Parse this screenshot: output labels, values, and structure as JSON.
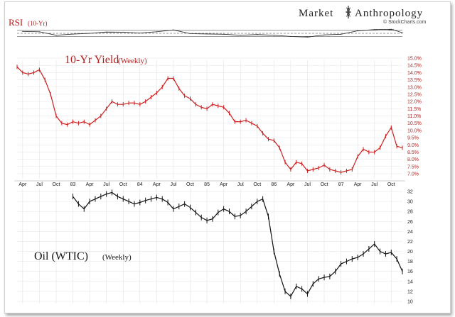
{
  "brand": {
    "name_left": "Market",
    "name_right": "Anthropology",
    "watermark": "© StockCharts.com"
  },
  "colors": {
    "yield_line": "#cc1f1f",
    "oil_line": "#111111",
    "rsi_line": "#333333",
    "rsi_fill": "#555555",
    "label_red": "#b81c1c",
    "text": "#222222",
    "grid": "#e3e3e3"
  },
  "chart_data": [
    {
      "type": "line",
      "panel": "rsi",
      "title": "RSI",
      "subtitle": "(10-Yr)",
      "x_unit": "date",
      "ylim": [
        0,
        100
      ],
      "levels": [
        70,
        50,
        30
      ],
      "x": [
        "1982-04",
        "1982-07",
        "1982-10",
        "1983-01",
        "1983-04",
        "1983-07",
        "1983-10",
        "1984-01",
        "1984-04",
        "1984-07",
        "1984-10",
        "1985-01",
        "1985-04",
        "1985-07",
        "1985-10",
        "1986-01",
        "1986-04",
        "1986-07",
        "1986-10",
        "1987-01",
        "1987-04",
        "1987-07",
        "1987-10",
        "1987-12"
      ],
      "values": [
        62,
        60,
        38,
        45,
        50,
        58,
        57,
        52,
        60,
        72,
        48,
        46,
        44,
        38,
        42,
        38,
        30,
        26,
        40,
        44,
        66,
        74,
        76,
        54
      ]
    },
    {
      "type": "line",
      "panel": "yield",
      "title": "10-Yr Yield",
      "subtitle": "(Weekly)",
      "x_unit": "date",
      "ylim": [
        6.5,
        15.0
      ],
      "y_ticks": [
        "15.0%",
        "14.5%",
        "14.0%",
        "13.5%",
        "13.0%",
        "12.5%",
        "12.0%",
        "11.5%",
        "11.0%",
        "10.5%",
        "10.0%",
        "9.5%",
        "9.0%",
        "8.5%",
        "8.0%",
        "7.5%",
        "7.0%"
      ],
      "x": [
        "1982-03",
        "1982-04",
        "1982-05",
        "1982-06",
        "1982-07",
        "1982-08",
        "1982-09",
        "1982-10",
        "1982-11",
        "1982-12",
        "1983-01",
        "1983-02",
        "1983-03",
        "1983-04",
        "1983-05",
        "1983-06",
        "1983-07",
        "1983-08",
        "1983-09",
        "1983-10",
        "1983-11",
        "1983-12",
        "1984-01",
        "1984-02",
        "1984-03",
        "1984-04",
        "1984-05",
        "1984-06",
        "1984-07",
        "1984-08",
        "1984-09",
        "1984-10",
        "1984-11",
        "1984-12",
        "1985-01",
        "1985-02",
        "1985-03",
        "1985-04",
        "1985-05",
        "1985-06",
        "1985-07",
        "1985-08",
        "1985-09",
        "1985-10",
        "1985-11",
        "1985-12",
        "1986-01",
        "1986-02",
        "1986-03",
        "1986-04",
        "1986-05",
        "1986-06",
        "1986-07",
        "1986-08",
        "1986-09",
        "1986-10",
        "1986-11",
        "1986-12",
        "1987-01",
        "1987-02",
        "1987-03",
        "1987-04",
        "1987-05",
        "1987-06",
        "1987-07",
        "1987-08",
        "1987-09",
        "1987-10",
        "1987-11",
        "1987-12"
      ],
      "values": [
        14.4,
        14.0,
        13.9,
        14.0,
        14.2,
        13.5,
        12.5,
        11.0,
        10.5,
        10.4,
        10.6,
        10.5,
        10.6,
        10.4,
        10.7,
        11.0,
        11.5,
        12.0,
        11.8,
        11.8,
        11.9,
        11.9,
        11.8,
        12.0,
        12.3,
        12.6,
        13.0,
        13.6,
        13.6,
        12.9,
        12.4,
        12.2,
        11.8,
        11.6,
        11.5,
        11.8,
        11.7,
        11.6,
        11.2,
        10.6,
        10.6,
        10.7,
        10.5,
        10.3,
        9.8,
        9.4,
        9.3,
        8.8,
        7.8,
        7.3,
        7.8,
        7.7,
        7.2,
        7.3,
        7.4,
        7.6,
        7.3,
        7.2,
        7.1,
        7.2,
        7.3,
        8.2,
        8.7,
        8.5,
        8.5,
        8.8,
        9.6,
        10.2,
        8.9,
        8.8
      ]
    },
    {
      "type": "line",
      "panel": "oil",
      "title": "Oil (WTIC)",
      "subtitle": "(Weekly)",
      "x_unit": "date",
      "ylim": [
        10,
        32
      ],
      "y_ticks": [
        "32",
        "30",
        "28",
        "26",
        "24",
        "22",
        "20",
        "18",
        "16",
        "14",
        "12",
        "10"
      ],
      "x": [
        "1983-01",
        "1983-02",
        "1983-03",
        "1983-04",
        "1983-05",
        "1983-06",
        "1983-07",
        "1983-08",
        "1983-09",
        "1983-10",
        "1983-11",
        "1983-12",
        "1984-01",
        "1984-02",
        "1984-03",
        "1984-04",
        "1984-05",
        "1984-06",
        "1984-07",
        "1984-08",
        "1984-09",
        "1984-10",
        "1984-11",
        "1984-12",
        "1985-01",
        "1985-02",
        "1985-03",
        "1985-04",
        "1985-05",
        "1985-06",
        "1985-07",
        "1985-08",
        "1985-09",
        "1985-10",
        "1985-11",
        "1985-12",
        "1986-01",
        "1986-02",
        "1986-03",
        "1986-04",
        "1986-05",
        "1986-06",
        "1986-07",
        "1986-08",
        "1986-09",
        "1986-10",
        "1986-11",
        "1986-12",
        "1987-01",
        "1987-02",
        "1987-03",
        "1987-04",
        "1987-05",
        "1987-06",
        "1987-07",
        "1987-08",
        "1987-09",
        "1987-10",
        "1987-11",
        "1987-12"
      ],
      "values": [
        31.0,
        29.5,
        28.5,
        30.0,
        30.5,
        31.0,
        31.5,
        31.8,
        31.0,
        30.5,
        30.0,
        29.5,
        29.8,
        30.2,
        30.5,
        30.8,
        30.5,
        29.8,
        28.5,
        29.0,
        29.5,
        28.8,
        27.8,
        26.8,
        26.2,
        26.5,
        27.8,
        28.5,
        28.0,
        27.0,
        27.2,
        28.0,
        29.0,
        30.0,
        30.5,
        27.0,
        20.0,
        15.5,
        12.0,
        11.0,
        13.0,
        12.5,
        11.5,
        13.5,
        14.5,
        14.8,
        15.0,
        16.0,
        17.5,
        18.0,
        18.5,
        18.8,
        19.5,
        20.5,
        21.5,
        20.0,
        19.5,
        19.8,
        18.5,
        16.0
      ]
    }
  ],
  "x_axis": {
    "labels": [
      "Apr",
      "Jul",
      "Oct",
      "83",
      "Apr",
      "Jul",
      "Oct",
      "84",
      "Apr",
      "Jul",
      "Oct",
      "85",
      "Apr",
      "Jul",
      "Oct",
      "86",
      "Apr",
      "Jul",
      "Oct",
      "87",
      "Apr",
      "Jul",
      "Oct"
    ],
    "label_dates": [
      "1982-04",
      "1982-07",
      "1982-10",
      "1983-01",
      "1983-04",
      "1983-07",
      "1983-10",
      "1984-01",
      "1984-04",
      "1984-07",
      "1984-10",
      "1985-01",
      "1985-04",
      "1985-07",
      "1985-10",
      "1986-01",
      "1986-04",
      "1986-07",
      "1986-10",
      "1987-01",
      "1987-04",
      "1987-07",
      "1987-10"
    ]
  }
}
